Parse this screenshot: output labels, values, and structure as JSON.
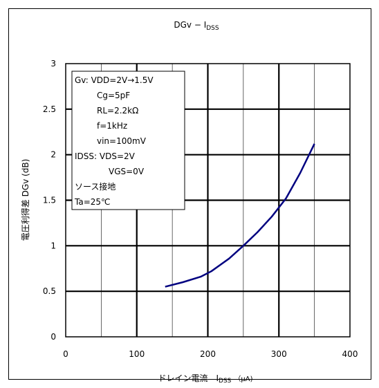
{
  "chart_data": {
    "type": "line",
    "title_main": "DGv − I",
    "title_sub": "DSS",
    "xlabel_main": "ドレイン電流　I",
    "xlabel_sub": "DSS",
    "xlabel_unit": "（μA)",
    "ylabel": "電圧利得差  DGv (dB)",
    "xlim": [
      0,
      400
    ],
    "ylim": [
      0,
      3
    ],
    "xticks": [
      "0",
      "100",
      "200",
      "300",
      "400"
    ],
    "yticks": [
      "0",
      "0.5",
      "1",
      "1.5",
      "2",
      "2.5",
      "3"
    ],
    "grid": true,
    "line_color": "#000080",
    "series": [
      {
        "x": [
          140,
          165,
          190,
          205,
          230,
          250,
          270,
          290,
          310,
          330,
          350
        ],
        "y": [
          0.55,
          0.6,
          0.66,
          0.72,
          0.86,
          1.0,
          1.15,
          1.32,
          1.52,
          1.8,
          2.12
        ]
      }
    ],
    "annotation_lines": [
      "Gv: VDD=2V→1.5V",
      "Cg=5pF",
      "RL=2.2kΩ",
      "f=1kHz",
      "vin=100mV",
      "IDSS: VDS=2V",
      "VGS=0V",
      "ソース接地",
      "Ta=25℃"
    ]
  }
}
